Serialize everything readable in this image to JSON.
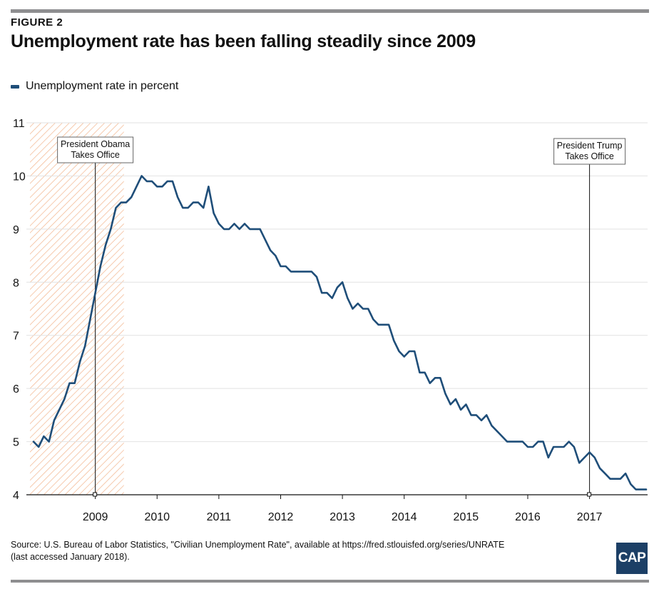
{
  "figure_label": "FIGURE 2",
  "title": "Unemployment rate has been falling steadily since 2009",
  "legend_label": "Unemployment rate in percent",
  "source": "Source: U.S. Bureau of Labor Statistics, \"Civilian Unemployment Rate\", available at https://fred.stlouisfed.org/series/UNRATE",
  "source_note": "(last accessed January 2018).",
  "logo_text": "CAP",
  "colors": {
    "line": "#1f4e79",
    "shade": "#f2b48c",
    "grid": "#e2e2e2",
    "logo": "#1c3f66"
  },
  "chart_data": {
    "type": "line",
    "title": "Unemployment rate has been falling steadily since 2009",
    "xlabel": "",
    "ylabel": "",
    "ylim": [
      4,
      11
    ],
    "yticks": [
      4,
      5,
      6,
      7,
      8,
      9,
      10,
      11
    ],
    "xticks": [
      "2009",
      "2010",
      "2011",
      "2012",
      "2013",
      "2014",
      "2015",
      "2016",
      "2017"
    ],
    "grid": "horizontal",
    "start": "2008-01",
    "end": "2017-12",
    "series": [
      {
        "name": "Unemployment rate in percent",
        "values": [
          5.0,
          4.9,
          5.1,
          5.0,
          5.4,
          5.6,
          5.8,
          6.1,
          6.1,
          6.5,
          6.8,
          7.3,
          7.8,
          8.3,
          8.7,
          9.0,
          9.4,
          9.5,
          9.5,
          9.6,
          9.8,
          10.0,
          9.9,
          9.9,
          9.8,
          9.8,
          9.9,
          9.9,
          9.6,
          9.4,
          9.4,
          9.5,
          9.5,
          9.4,
          9.8,
          9.3,
          9.1,
          9.0,
          9.0,
          9.1,
          9.0,
          9.1,
          9.0,
          9.0,
          9.0,
          8.8,
          8.6,
          8.5,
          8.3,
          8.3,
          8.2,
          8.2,
          8.2,
          8.2,
          8.2,
          8.1,
          7.8,
          7.8,
          7.7,
          7.9,
          8.0,
          7.7,
          7.5,
          7.6,
          7.5,
          7.5,
          7.3,
          7.2,
          7.2,
          7.2,
          6.9,
          6.7,
          6.6,
          6.7,
          6.7,
          6.3,
          6.3,
          6.1,
          6.2,
          6.2,
          5.9,
          5.7,
          5.8,
          5.6,
          5.7,
          5.5,
          5.5,
          5.4,
          5.5,
          5.3,
          5.2,
          5.1,
          5.0,
          5.0,
          5.0,
          5.0,
          4.9,
          4.9,
          5.0,
          5.0,
          4.7,
          4.9,
          4.9,
          4.9,
          5.0,
          4.9,
          4.6,
          4.7,
          4.8,
          4.7,
          4.5,
          4.4,
          4.3,
          4.3,
          4.3,
          4.4,
          4.2,
          4.1,
          4.1,
          4.1
        ]
      }
    ],
    "shaded_period": {
      "start": "2008-01",
      "end": "2009-06"
    },
    "annotations": [
      {
        "text": [
          "President Obama",
          "Takes Office"
        ],
        "date": "2009-01"
      },
      {
        "text": [
          "President Trump",
          "Takes Office"
        ],
        "date": "2017-01"
      }
    ]
  }
}
